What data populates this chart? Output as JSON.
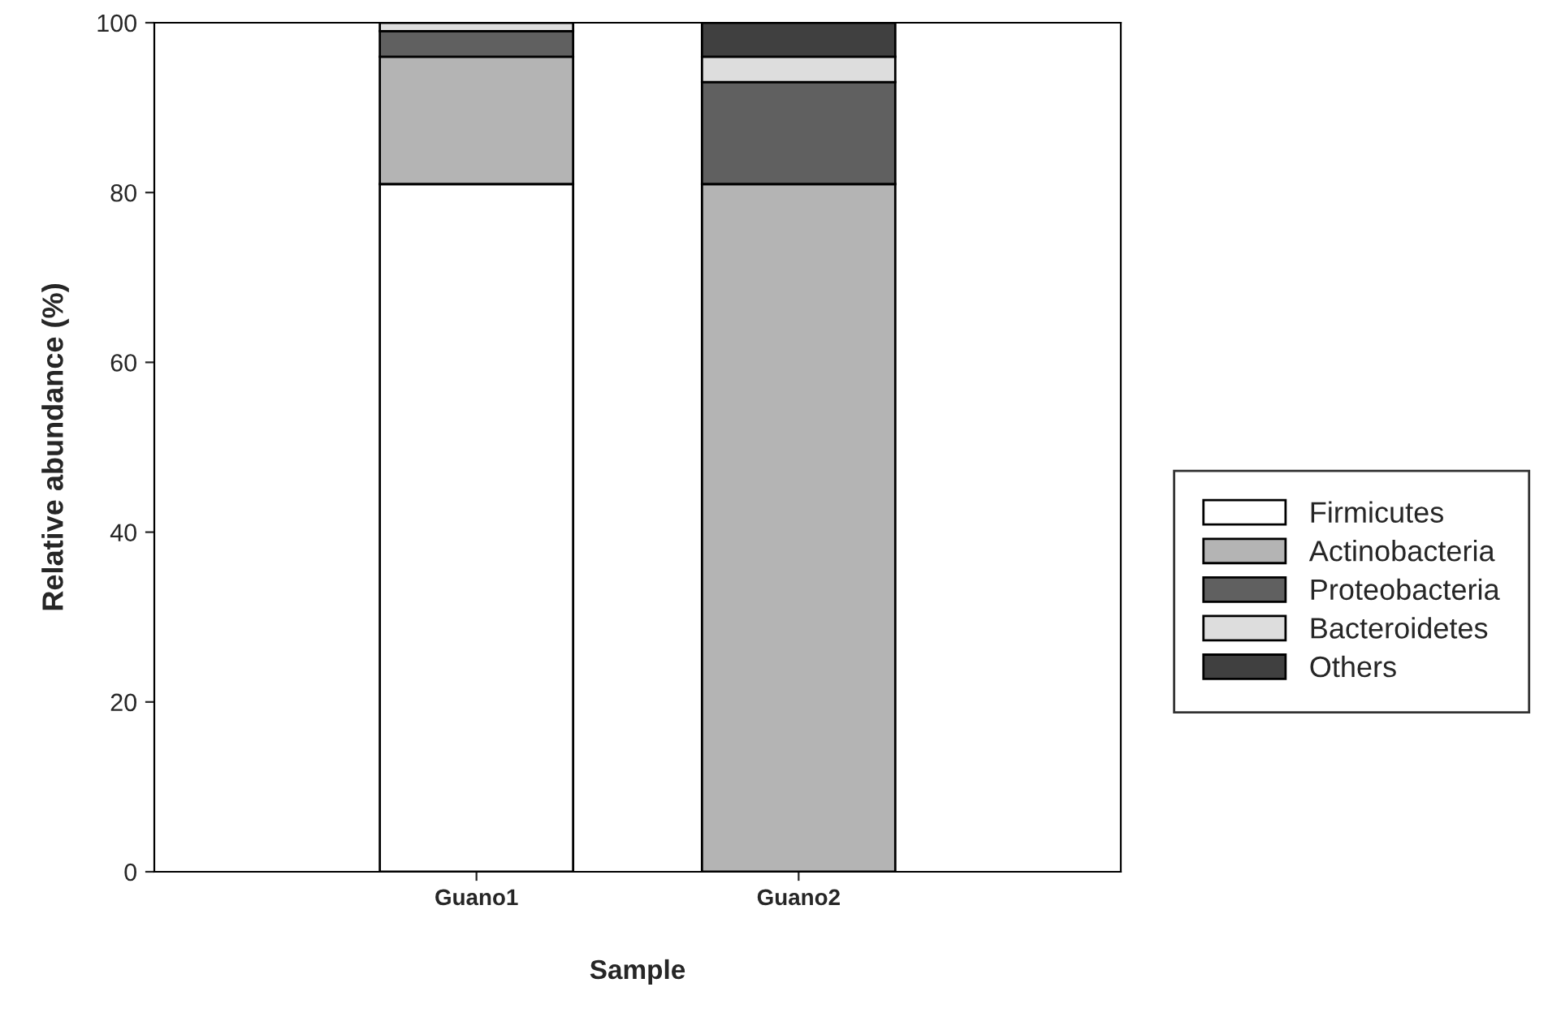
{
  "chart_data": {
    "type": "bar",
    "stacked": true,
    "xlabel": "Sample",
    "ylabel": "Relative abundance (%)",
    "categories": [
      "Guano1",
      "Guano2"
    ],
    "series": [
      {
        "name": "Firmicutes",
        "color": "#ffffff",
        "values": [
          81,
          null
        ]
      },
      {
        "name": "Actinobacteria",
        "color": "#b4b4b4",
        "values": [
          15,
          81
        ]
      },
      {
        "name": "Proteobacteria",
        "color": "#606060",
        "values": [
          3,
          12
        ]
      },
      {
        "name": "Bacteroidetes",
        "color": "#dddddd",
        "values": [
          1,
          3
        ]
      },
      {
        "name": "Others",
        "color": "#404040",
        "values": [
          null,
          4
        ]
      }
    ],
    "ylim": [
      0,
      100
    ],
    "yticks": [
      0,
      20,
      40,
      60,
      80,
      100
    ],
    "grid": false,
    "legend": "right"
  }
}
